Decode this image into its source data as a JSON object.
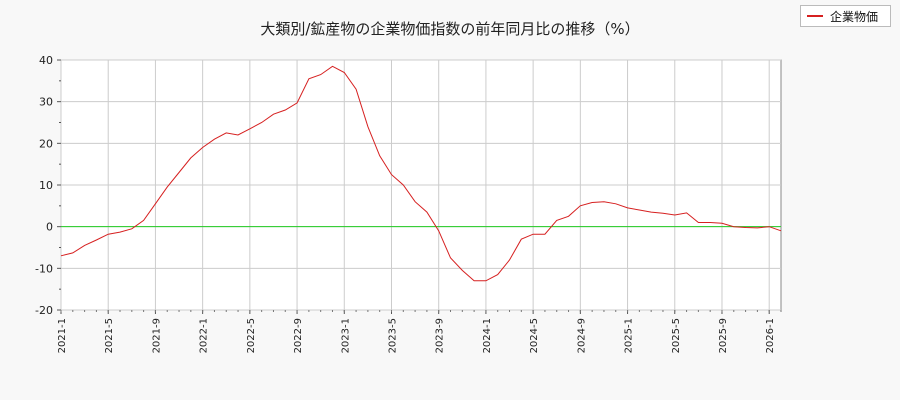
{
  "chart_data": {
    "type": "line",
    "title": "大類別/鉱産物の企業物価指数の前年同月比の推移（%）",
    "xlabel": "",
    "ylabel": "",
    "ylim": [
      -20,
      40
    ],
    "yticks": [
      -20,
      -10,
      0,
      10,
      20,
      30,
      40
    ],
    "xticks": [
      "2021-1",
      "2021-5",
      "2021-9",
      "2022-1",
      "2022-5",
      "2022-9",
      "2023-1",
      "2023-5",
      "2023-9",
      "2024-1",
      "2024-5",
      "2024-9",
      "2025-1",
      "2025-5",
      "2025-9",
      "2026-1"
    ],
    "grid": true,
    "legend": "top-right",
    "reference_line": 0,
    "series": [
      {
        "name": "企業物価",
        "color": "#d62020",
        "x": [
          "2021-1",
          "2021-2",
          "2021-3",
          "2021-4",
          "2021-5",
          "2021-6",
          "2021-7",
          "2021-8",
          "2021-9",
          "2021-10",
          "2021-11",
          "2021-12",
          "2022-1",
          "2022-2",
          "2022-3",
          "2022-4",
          "2022-5",
          "2022-6",
          "2022-7",
          "2022-8",
          "2022-9",
          "2022-10",
          "2022-11",
          "2022-12",
          "2023-1",
          "2023-2",
          "2023-3",
          "2023-4",
          "2023-5",
          "2023-6",
          "2023-7",
          "2023-8",
          "2023-9",
          "2023-10",
          "2023-11",
          "2023-12",
          "2024-1",
          "2024-2",
          "2024-3",
          "2024-4",
          "2024-5",
          "2024-6",
          "2024-7",
          "2024-8",
          "2024-9",
          "2024-10",
          "2024-11",
          "2024-12",
          "2025-1",
          "2025-2",
          "2025-3",
          "2025-4",
          "2025-5",
          "2025-6",
          "2025-7",
          "2025-8",
          "2025-9",
          "2025-10",
          "2025-11",
          "2025-12",
          "2026-1",
          "2026-2"
        ],
        "values": [
          -7.0,
          -6.3,
          -4.5,
          -3.2,
          -1.8,
          -1.3,
          -0.5,
          1.5,
          5.5,
          9.5,
          13.0,
          16.5,
          19.0,
          21.0,
          22.5,
          22.0,
          23.5,
          25.0,
          27.0,
          28.0,
          29.7,
          35.5,
          36.5,
          38.5,
          37.0,
          33.0,
          24.0,
          17.0,
          12.5,
          10.0,
          6.0,
          3.5,
          -1.0,
          -7.5,
          -10.5,
          -13.0,
          -13.0,
          -11.5,
          -8.0,
          -3.0,
          -1.8,
          -1.8,
          1.5,
          2.5,
          5.0,
          5.8,
          6.0,
          5.5,
          4.5,
          4.0,
          3.5,
          3.2,
          2.8,
          3.3,
          1.0,
          1.0,
          0.8,
          0.0,
          -0.2,
          -0.3,
          0.0,
          -1.0
        ]
      }
    ]
  }
}
